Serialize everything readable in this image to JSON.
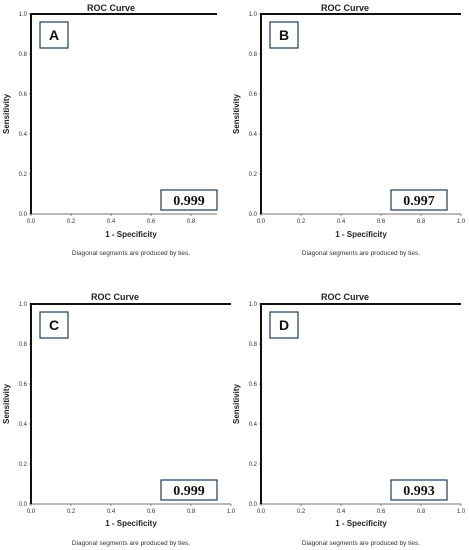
{
  "chart_data": [
    {
      "type": "line",
      "panel_label": "A",
      "title": "ROC Curve",
      "xlabel": "1 - Specificity",
      "ylabel": "Sensitivity",
      "xlim": [
        0,
        1
      ],
      "ylim": [
        0,
        1
      ],
      "x_ticks": [
        "0.0",
        "0.2",
        "0.4",
        "0.6",
        "0.8"
      ],
      "y_ticks": [
        "0.0",
        "0.2",
        "0.4",
        "0.6",
        "0.8",
        "1.0"
      ],
      "series": [
        {
          "x": [
            0.0,
            0.0,
            1.0
          ],
          "y": [
            0.0,
            1.0,
            1.0
          ]
        }
      ],
      "auc_label": "0.999",
      "footnote": "Diagonal segments are produced by ties."
    },
    {
      "type": "line",
      "panel_label": "B",
      "title": "ROC Curve",
      "xlabel": "1 - Specificity",
      "ylabel": "Sensitivity",
      "xlim": [
        0,
        1
      ],
      "ylim": [
        0,
        1
      ],
      "x_ticks": [
        "0.0",
        "0.2",
        "0.4",
        "0.6",
        "0.8",
        "1.0"
      ],
      "y_ticks": [
        "0.0",
        "0.2",
        "0.4",
        "0.6",
        "0.8",
        "1.0"
      ],
      "series": [
        {
          "x": [
            0.0,
            0.0,
            1.0
          ],
          "y": [
            0.0,
            1.0,
            1.0
          ]
        }
      ],
      "auc_label": "0.997",
      "footnote": "Diagonal segments are produced by ties."
    },
    {
      "type": "line",
      "panel_label": "C",
      "title": "ROC Curve",
      "xlabel": "1 - Specificity",
      "ylabel": "Sensitivity",
      "xlim": [
        0,
        1
      ],
      "ylim": [
        0,
        1
      ],
      "x_ticks": [
        "0.0",
        "0.2",
        "0.4",
        "0.6",
        "0.8",
        "1.0"
      ],
      "y_ticks": [
        "0.0",
        "0.2",
        "0.4",
        "0.6",
        "0.8",
        "1.0"
      ],
      "series": [
        {
          "x": [
            0.0,
            0.0,
            1.0
          ],
          "y": [
            0.0,
            1.0,
            1.0
          ]
        }
      ],
      "auc_label": "0.999",
      "footnote": "Diagonal segments are produced by ties."
    },
    {
      "type": "line",
      "panel_label": "D",
      "title": "ROC Curve",
      "xlabel": "1 - Specificity",
      "ylabel": "Sensitivity",
      "xlim": [
        0,
        1
      ],
      "ylim": [
        0,
        1
      ],
      "x_ticks": [
        "0.0",
        "0.2",
        "0.4",
        "0.6",
        "0.8",
        "1.0"
      ],
      "y_ticks": [
        "0.0",
        "0.2",
        "0.4",
        "0.6",
        "0.8",
        "1.0"
      ],
      "series": [
        {
          "x": [
            0.0,
            0.0,
            1.0
          ],
          "y": [
            0.0,
            1.0,
            1.0
          ]
        }
      ],
      "auc_label": "0.993",
      "footnote": "Diagonal segments are produced by ties."
    }
  ]
}
